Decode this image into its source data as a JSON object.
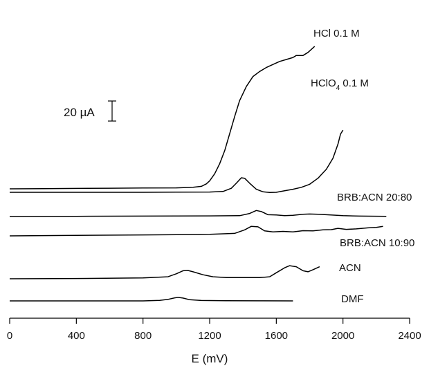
{
  "chart_data": {
    "type": "line",
    "title": "",
    "xlabel": "E (mV)",
    "ylabel": "",
    "xlim": [
      0,
      2400
    ],
    "xticks": [
      0,
      400,
      800,
      1200,
      1600,
      2000,
      2400
    ],
    "grid": false,
    "scale_bar": {
      "label": "20 µA",
      "value_uA": 20
    },
    "series": [
      {
        "name": "HCl 0.1 M",
        "label_main": "HCl 0.1 M",
        "label_sub": "",
        "label_tail": "",
        "baseline_uA": 0,
        "points": [
          [
            0,
            0
          ],
          [
            200,
            0.2
          ],
          [
            400,
            0.4
          ],
          [
            600,
            0.6
          ],
          [
            800,
            0.8
          ],
          [
            1000,
            1.0
          ],
          [
            1100,
            1.5
          ],
          [
            1150,
            2.5
          ],
          [
            1180,
            5
          ],
          [
            1200,
            8
          ],
          [
            1230,
            15
          ],
          [
            1260,
            25
          ],
          [
            1290,
            38
          ],
          [
            1320,
            55
          ],
          [
            1350,
            72
          ],
          [
            1380,
            88
          ],
          [
            1420,
            102
          ],
          [
            1460,
            112
          ],
          [
            1500,
            117
          ],
          [
            1540,
            121
          ],
          [
            1580,
            124
          ],
          [
            1620,
            127
          ],
          [
            1660,
            129
          ],
          [
            1700,
            131
          ],
          [
            1720,
            133
          ],
          [
            1760,
            133
          ],
          [
            1790,
            136
          ],
          [
            1830,
            142
          ]
        ],
        "color": "#000000"
      },
      {
        "name": "HClO4 0.1 M",
        "label_main": "HClO",
        "label_sub": "4",
        "label_tail": " 0.1 M",
        "baseline_uA": 0,
        "points": [
          [
            0,
            0
          ],
          [
            400,
            0
          ],
          [
            800,
            0
          ],
          [
            1200,
            0.3
          ],
          [
            1280,
            0.8
          ],
          [
            1330,
            4
          ],
          [
            1360,
            9
          ],
          [
            1390,
            14.5
          ],
          [
            1410,
            14
          ],
          [
            1440,
            9
          ],
          [
            1480,
            3
          ],
          [
            1520,
            0.5
          ],
          [
            1560,
            -0.2
          ],
          [
            1600,
            0
          ],
          [
            1650,
            1.5
          ],
          [
            1700,
            3
          ],
          [
            1750,
            5
          ],
          [
            1800,
            8
          ],
          [
            1850,
            14
          ],
          [
            1900,
            23
          ],
          [
            1940,
            34
          ],
          [
            1970,
            48
          ],
          [
            1985,
            58
          ],
          [
            2000,
            62
          ]
        ],
        "color": "#000000"
      },
      {
        "name": "BRB:ACN 20:80",
        "label_main": "BRB:ACN 20:80",
        "label_sub": "",
        "label_tail": "",
        "baseline_uA": 0,
        "points": [
          [
            0,
            0
          ],
          [
            400,
            0.2
          ],
          [
            800,
            0.4
          ],
          [
            1200,
            0.6
          ],
          [
            1380,
            0.8
          ],
          [
            1440,
            3
          ],
          [
            1480,
            6
          ],
          [
            1510,
            5
          ],
          [
            1550,
            1.8
          ],
          [
            1600,
            1.5
          ],
          [
            1650,
            0.8
          ],
          [
            1700,
            1.2
          ],
          [
            1760,
            2.2
          ],
          [
            1800,
            2.5
          ],
          [
            1850,
            2.2
          ],
          [
            1900,
            1.8
          ],
          [
            2000,
            0.8
          ],
          [
            2100,
            0.4
          ],
          [
            2200,
            0.3
          ],
          [
            2260,
            0.2
          ]
        ],
        "color": "#000000"
      },
      {
        "name": "BRB:ACN 10:90",
        "label_main": "BRB:ACN 10:90",
        "label_sub": "",
        "label_tail": "",
        "baseline_uA": 0,
        "points": [
          [
            0,
            0
          ],
          [
            400,
            0.5
          ],
          [
            800,
            1
          ],
          [
            1200,
            1.5
          ],
          [
            1350,
            2.5
          ],
          [
            1410,
            6
          ],
          [
            1450,
            9.5
          ],
          [
            1490,
            9
          ],
          [
            1530,
            5
          ],
          [
            1580,
            4
          ],
          [
            1640,
            4.5
          ],
          [
            1700,
            4
          ],
          [
            1760,
            5.2
          ],
          [
            1820,
            5
          ],
          [
            1880,
            6
          ],
          [
            1930,
            6.2
          ],
          [
            1970,
            7.5
          ],
          [
            2020,
            6.5
          ],
          [
            2080,
            7
          ],
          [
            2150,
            8
          ],
          [
            2200,
            8.5
          ],
          [
            2240,
            9.5
          ]
        ],
        "color": "#000000"
      },
      {
        "name": "ACN",
        "label_main": "ACN",
        "label_sub": "",
        "label_tail": "",
        "baseline_uA": 0,
        "points": [
          [
            0,
            0
          ],
          [
            400,
            0.3
          ],
          [
            800,
            0.8
          ],
          [
            950,
            2
          ],
          [
            1000,
            5
          ],
          [
            1040,
            8
          ],
          [
            1070,
            8.3
          ],
          [
            1100,
            7
          ],
          [
            1160,
            4
          ],
          [
            1220,
            2
          ],
          [
            1300,
            1.2
          ],
          [
            1400,
            1.2
          ],
          [
            1500,
            1.2
          ],
          [
            1560,
            2
          ],
          [
            1600,
            6
          ],
          [
            1650,
            11
          ],
          [
            1680,
            13
          ],
          [
            1720,
            12
          ],
          [
            1760,
            8
          ],
          [
            1790,
            7
          ],
          [
            1820,
            9
          ],
          [
            1860,
            12
          ]
        ],
        "color": "#000000"
      },
      {
        "name": "DMF",
        "label_main": "DMF",
        "label_sub": "",
        "label_tail": "",
        "baseline_uA": 0,
        "points": [
          [
            0,
            0
          ],
          [
            400,
            0
          ],
          [
            800,
            0
          ],
          [
            900,
            0.5
          ],
          [
            950,
            1.5
          ],
          [
            990,
            3
          ],
          [
            1010,
            3.5
          ],
          [
            1040,
            2.8
          ],
          [
            1080,
            1.2
          ],
          [
            1150,
            0.4
          ],
          [
            1300,
            0.2
          ],
          [
            1500,
            0.1
          ],
          [
            1700,
            0
          ]
        ],
        "color": "#000000"
      }
    ]
  }
}
